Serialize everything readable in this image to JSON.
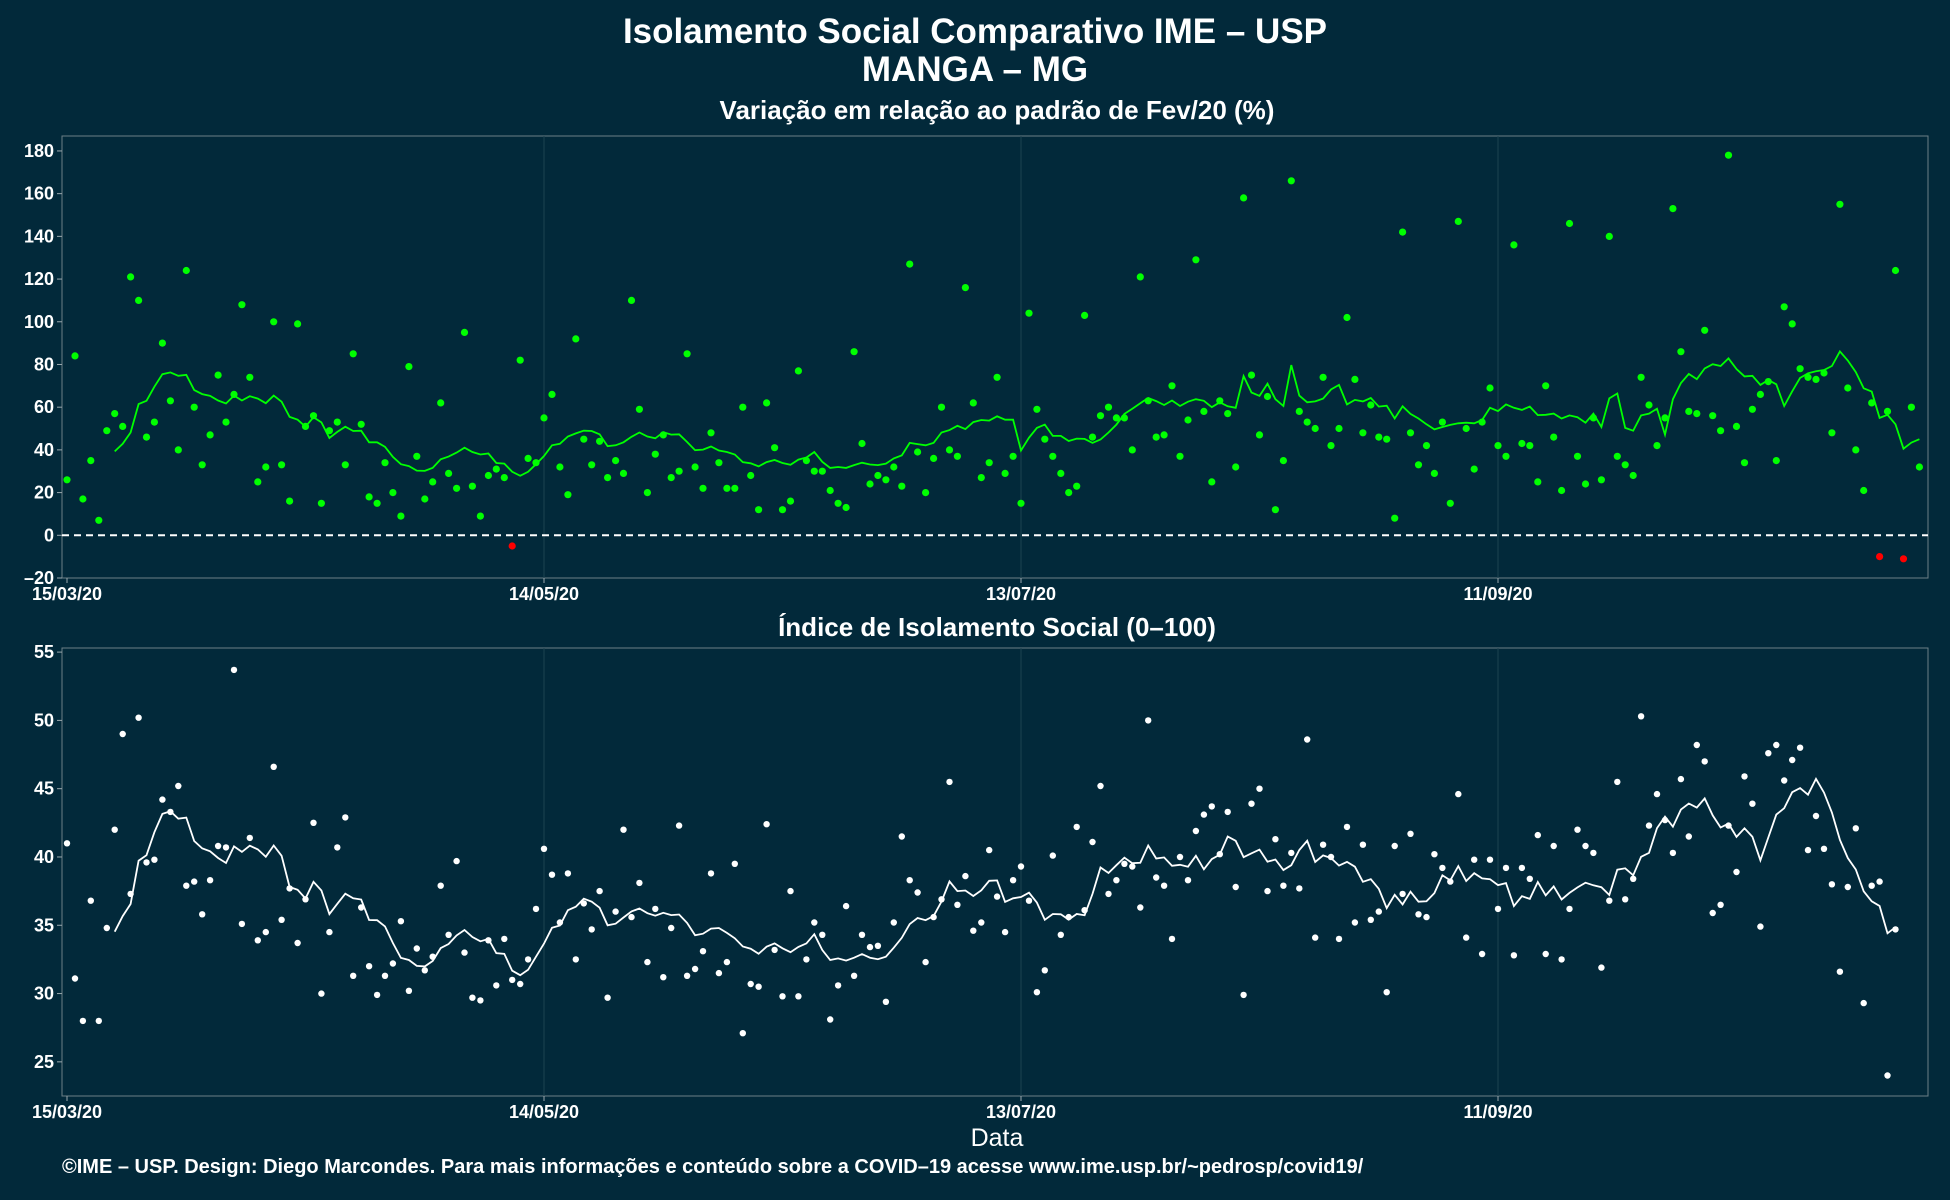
{
  "header": {
    "title": "Isolamento Social Comparativo IME – USP",
    "subtitle": "MANGA – MG"
  },
  "caption": "©IME – USP. Design: Diego Marcondes. Para mais informações e conteúdo sobre a COVID–19 acesse www.ime.usp.br/~pedrosp/covid19/",
  "colors": {
    "background": "#02293a",
    "green": "#00ff00",
    "red": "#ff0000",
    "white": "#ffffff"
  },
  "chart_data": [
    {
      "type": "scatter",
      "title": "Variação em relação ao padrão de Fev/20 (%)",
      "x_start": "15/03/20",
      "x_ticks": [
        "15/03/20",
        "14/05/20",
        "13/07/20",
        "11/09/20"
      ],
      "x_tick_days": [
        0,
        60,
        120,
        180
      ],
      "ylim": [
        -20,
        187
      ],
      "y_ticks": [
        -20,
        0,
        20,
        40,
        60,
        80,
        100,
        120,
        140,
        160,
        180
      ],
      "reference_line": 0,
      "grid": true,
      "series": [
        {
          "values": [
            26,
            84,
            17,
            35,
            7,
            49,
            57,
            51,
            121,
            110,
            46,
            53,
            90,
            63,
            40,
            124,
            60,
            33,
            47,
            75,
            53,
            66,
            108,
            74,
            25,
            32,
            100,
            33,
            16,
            99,
            51,
            56,
            15,
            49,
            53,
            33,
            85,
            52,
            18,
            15,
            34,
            20,
            9,
            79,
            37,
            17,
            25,
            62,
            29,
            22,
            95,
            23,
            9,
            28,
            31,
            27,
            -5,
            82,
            36,
            34,
            55,
            66,
            32,
            19,
            92,
            45,
            33,
            44,
            27,
            35,
            29,
            110,
            59,
            20,
            38,
            47,
            27,
            30,
            85,
            32,
            22,
            48,
            34,
            22,
            22,
            60,
            28,
            12,
            62,
            41,
            12,
            16,
            77,
            35,
            30,
            30,
            21,
            15,
            13,
            86,
            43,
            24,
            28,
            26,
            32,
            23,
            127,
            39,
            20,
            36,
            60,
            40,
            37,
            116,
            62,
            27,
            34,
            74,
            29,
            37,
            15,
            104,
            59,
            45,
            37,
            29,
            20,
            23,
            103,
            46,
            56,
            60,
            55,
            55,
            40,
            121,
            63,
            46,
            47,
            70,
            37,
            54,
            129,
            58,
            25,
            63,
            57,
            32,
            158,
            75,
            47,
            65,
            12,
            35,
            166,
            58,
            53,
            50,
            74,
            42,
            50,
            102,
            73,
            48,
            61,
            46,
            45,
            8,
            142,
            48,
            33,
            42,
            29,
            53,
            15,
            147,
            50,
            31,
            53,
            69,
            42,
            37,
            136,
            43,
            42,
            25,
            70,
            46,
            21,
            146,
            37,
            24,
            55,
            26,
            140,
            37,
            33,
            28,
            74,
            61,
            42,
            55,
            153,
            86,
            58,
            57,
            96,
            56,
            49,
            178,
            51,
            34,
            59,
            66,
            72,
            35,
            107,
            99,
            78,
            74,
            73,
            76,
            48,
            155,
            69,
            40,
            21,
            62,
            -10,
            58,
            124,
            -11,
            60,
            32
          ],
          "colors_note": "green points; negative values red"
        },
        {
          "name_note": "7-day moving average line (green)"
        }
      ]
    },
    {
      "type": "scatter",
      "title": "Índice de Isolamento Social (0–100)",
      "xlabel": "Data",
      "x_start": "15/03/20",
      "x_ticks": [
        "15/03/20",
        "14/05/20",
        "13/07/20",
        "11/09/20"
      ],
      "x_tick_days": [
        0,
        60,
        120,
        180
      ],
      "ylim": [
        22.5,
        55.3
      ],
      "y_ticks": [
        25,
        30,
        35,
        40,
        45,
        50,
        55
      ],
      "grid": true,
      "series": [
        {
          "values": [
            41,
            31.1,
            28,
            36.8,
            28,
            34.8,
            42,
            49,
            37.3,
            50.2,
            39.6,
            39.8,
            44.2,
            43.3,
            45.2,
            37.9,
            38.2,
            35.8,
            38.3,
            40.8,
            40.7,
            53.7,
            35.1,
            41.4,
            33.9,
            34.5,
            46.6,
            35.4,
            37.7,
            33.7,
            36.9,
            42.5,
            30,
            34.5,
            40.7,
            42.9,
            31.3,
            36.3,
            32,
            29.9,
            31.3,
            32.2,
            35.3,
            30.2,
            33.3,
            31.7,
            32.7,
            37.9,
            34.3,
            39.7,
            33,
            29.7,
            29.5,
            33.9,
            30.6,
            34,
            31,
            30.7,
            32.5,
            36.2,
            40.6,
            38.7,
            35.2,
            38.8,
            32.5,
            36.6,
            34.7,
            37.5,
            29.7,
            36,
            42,
            35.6,
            38.1,
            32.3,
            36.2,
            31.2,
            34.8,
            42.3,
            31.3,
            31.8,
            33.1,
            38.8,
            31.5,
            32.3,
            39.5,
            27.1,
            30.7,
            30.5,
            42.4,
            33.2,
            29.8,
            37.5,
            29.8,
            32.5,
            35.2,
            34.3,
            28.1,
            30.6,
            36.4,
            31.3,
            34.3,
            33.4,
            33.5,
            29.4,
            35.2,
            41.5,
            38.3,
            37.4,
            32.3,
            35.6,
            36.9,
            45.5,
            36.5,
            38.6,
            34.6,
            35.2,
            40.5,
            37.1,
            34.5,
            38.3,
            39.3,
            36.8,
            30.1,
            31.7,
            40.1,
            34.3,
            35.6,
            42.2,
            36.1,
            41.1,
            45.2,
            37.3,
            38.3,
            39.5,
            39.3,
            36.3,
            50,
            38.5,
            37.9,
            34,
            40,
            38.3,
            41.9,
            43.1,
            43.7,
            40.2,
            43.3,
            37.8,
            29.9,
            43.9,
            45,
            37.5,
            41.3,
            37.9,
            40.3,
            37.7,
            48.6,
            34.1,
            40.9,
            40,
            34,
            42.2,
            35.2,
            40.9,
            35.4,
            36,
            30.1,
            40.8,
            37.3,
            41.7,
            35.8,
            35.6,
            40.2,
            39.2,
            38.2,
            44.6,
            34.1,
            39.8,
            32.9,
            39.8,
            36.2,
            39.2,
            32.8,
            39.2,
            38.4,
            41.6,
            32.9,
            40.8,
            32.5,
            36.2,
            42,
            40.8,
            40.3,
            31.9,
            36.8,
            45.5,
            36.9,
            38.4,
            50.3,
            42.3,
            44.6,
            42.7,
            40.3,
            45.7,
            41.5,
            48.2,
            47,
            35.9,
            36.5,
            42.3,
            38.9,
            45.9,
            43.9,
            34.9,
            47.6,
            48.2,
            45.6,
            47.1,
            48,
            40.5,
            43,
            40.6,
            38,
            31.6,
            37.8,
            42.1,
            29.3,
            37.9,
            38.2,
            24,
            34.7
          ],
          "colors_note": "white points"
        },
        {
          "name_note": "7-day moving average line (white)"
        }
      ]
    }
  ]
}
